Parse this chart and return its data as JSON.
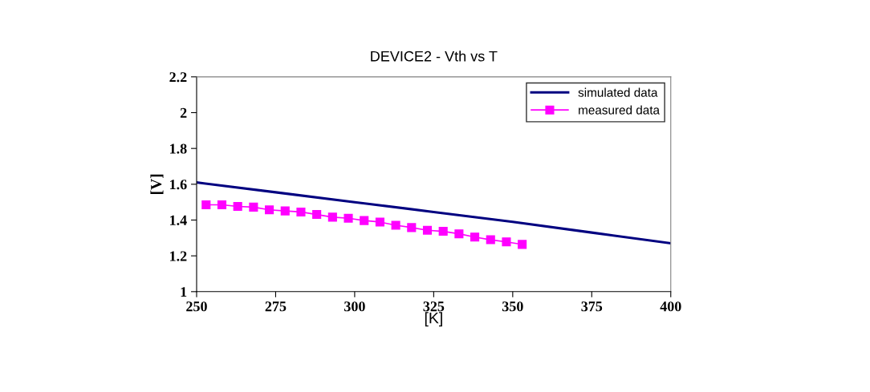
{
  "chart_data": {
    "type": "line",
    "title": "DEVICE2 - Vth vs T",
    "xlabel": "[K]",
    "ylabel": "[V]",
    "xlim": [
      250,
      400
    ],
    "xticks": [
      250,
      275,
      300,
      325,
      350,
      375,
      400
    ],
    "ylim": [
      1,
      2.2
    ],
    "yticks": [
      1,
      1.2,
      1.4,
      1.6,
      1.8,
      {
        "value": 2,
        "label": "2"
      },
      2.2
    ],
    "grid": false,
    "legend": "top right",
    "series": [
      {
        "name": "simulated data",
        "color": "#000080",
        "marker": "none",
        "x": [
          250,
          275,
          300,
          325,
          350,
          375,
          400
        ],
        "values": [
          1.61,
          1.555,
          1.5,
          1.445,
          1.39,
          1.33,
          1.27
        ]
      },
      {
        "name": "measured data",
        "color": "#ff00ff",
        "marker": "square",
        "x": [
          253,
          258,
          263,
          268,
          273,
          278,
          283,
          288,
          293,
          298,
          303,
          308,
          313,
          318,
          323,
          328,
          333,
          338,
          343,
          348,
          353
        ],
        "values": [
          1.485,
          1.485,
          1.476,
          1.472,
          1.457,
          1.451,
          1.445,
          1.431,
          1.416,
          1.41,
          1.397,
          1.389,
          1.371,
          1.358,
          1.343,
          1.337,
          1.323,
          1.305,
          1.29,
          1.278,
          1.264
        ]
      }
    ]
  }
}
